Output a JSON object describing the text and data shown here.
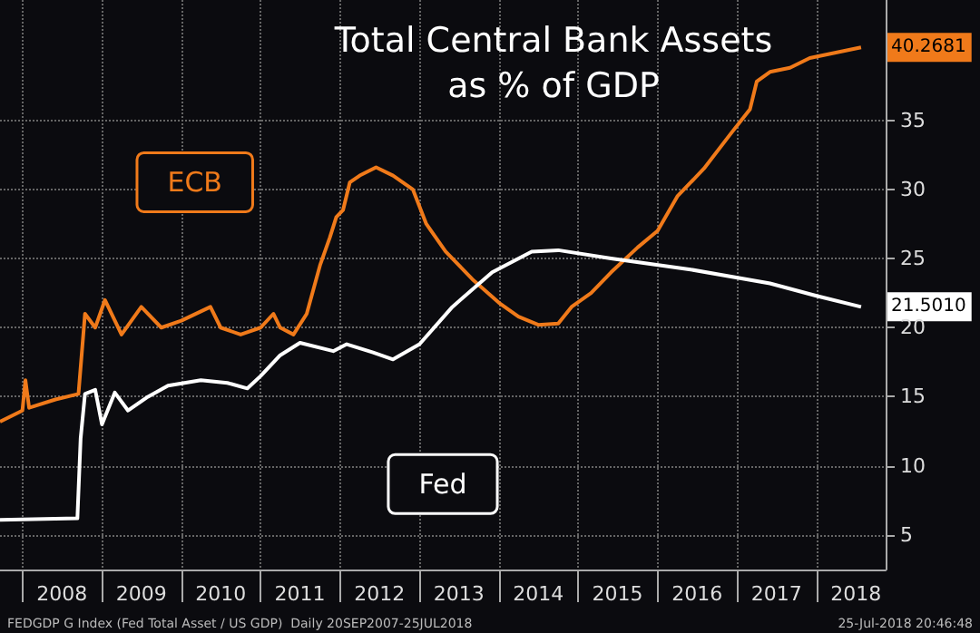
{
  "chart_data": {
    "type": "line",
    "title": "Total Central Bank Assets",
    "subtitle": "as % of GDP",
    "xlim": [
      "2007-09-20",
      "2018-11-15"
    ],
    "xticks": [
      {
        "value": "2008-01-01",
        "label": null
      },
      {
        "value": "2008-07-01",
        "label": "2008"
      },
      {
        "value": "2009-01-01",
        "label": null
      },
      {
        "value": "2009-07-01",
        "label": "2009"
      },
      {
        "value": "2010-01-01",
        "label": null
      },
      {
        "value": "2010-07-01",
        "label": "2010"
      },
      {
        "value": "2011-01-01",
        "label": null
      },
      {
        "value": "2011-07-01",
        "label": "2011"
      },
      {
        "value": "2012-01-01",
        "label": null
      },
      {
        "value": "2012-07-01",
        "label": "2012"
      },
      {
        "value": "2013-01-01",
        "label": null
      },
      {
        "value": "2013-07-01",
        "label": "2013"
      },
      {
        "value": "2014-01-01",
        "label": null
      },
      {
        "value": "2014-07-01",
        "label": "2014"
      },
      {
        "value": "2015-01-01",
        "label": null
      },
      {
        "value": "2015-07-01",
        "label": "2015"
      },
      {
        "value": "2016-01-01",
        "label": null
      },
      {
        "value": "2016-07-01",
        "label": "2016"
      },
      {
        "value": "2017-01-01",
        "label": null
      },
      {
        "value": "2017-07-01",
        "label": "2017"
      },
      {
        "value": "2018-01-01",
        "label": null
      },
      {
        "value": "2018-07-01",
        "label": "2018"
      }
    ],
    "ylim": [
      2.5,
      43.7
    ],
    "yticks": [
      5,
      10,
      15,
      20,
      25,
      30,
      35
    ],
    "grid": true,
    "marker": "none",
    "line_style": "solid",
    "series": [
      {
        "name": "ECB",
        "color": "#f07a1a",
        "x": [
          "2007-09-20",
          "2008-01-01",
          "2008-01-15",
          "2008-02-01",
          "2008-06-01",
          "2008-09-15",
          "2008-10-15",
          "2008-12-01",
          "2009-01-15",
          "2009-04-01",
          "2009-07-01",
          "2009-10-01",
          "2010-01-01",
          "2010-05-15",
          "2010-07-01",
          "2010-10-01",
          "2011-01-01",
          "2011-03-01",
          "2011-04-01",
          "2011-06-01",
          "2011-08-01",
          "2011-10-01",
          "2011-11-15",
          "2011-12-15",
          "2012-01-15",
          "2012-02-15",
          "2012-04-01",
          "2012-06-15",
          "2012-09-01",
          "2012-12-01",
          "2013-02-01",
          "2013-05-01",
          "2013-09-01",
          "2014-01-01",
          "2014-04-01",
          "2014-07-01",
          "2014-10-01",
          "2014-12-01",
          "2015-03-01",
          "2015-06-01",
          "2015-10-01",
          "2016-01-01",
          "2016-04-01",
          "2016-08-01",
          "2016-12-01",
          "2017-03-01",
          "2017-04-01",
          "2017-06-01",
          "2017-09-01",
          "2017-12-01",
          "2018-03-01",
          "2018-07-25"
        ],
        "values": [
          13.2,
          14.0,
          16.2,
          14.2,
          14.8,
          15.2,
          21.0,
          20.0,
          22.0,
          19.5,
          21.5,
          20.0,
          20.5,
          21.5,
          20.0,
          19.5,
          20.0,
          21.0,
          20.0,
          19.5,
          21.0,
          24.5,
          26.5,
          28.0,
          28.5,
          30.5,
          31.0,
          31.6,
          31.0,
          30.0,
          27.5,
          25.5,
          23.5,
          21.8,
          20.8,
          20.2,
          20.3,
          21.5,
          22.5,
          24.0,
          25.8,
          27.0,
          29.5,
          31.5,
          34.0,
          35.8,
          37.8,
          38.5,
          38.8,
          39.5,
          39.8,
          40.27
        ]
      },
      {
        "name": "Fed",
        "color": "#ffffff",
        "x": [
          "2007-09-20",
          "2008-09-10",
          "2008-09-25",
          "2008-10-15",
          "2008-12-01",
          "2009-01-01",
          "2009-03-01",
          "2009-05-01",
          "2009-08-01",
          "2009-11-01",
          "2010-04-01",
          "2010-08-01",
          "2010-11-01",
          "2011-01-01",
          "2011-04-01",
          "2011-07-01",
          "2011-12-01",
          "2012-02-01",
          "2012-06-01",
          "2012-09-01",
          "2013-01-01",
          "2013-06-01",
          "2013-12-01",
          "2014-06-01",
          "2014-10-01",
          "2015-06-01",
          "2016-06-01",
          "2017-06-01",
          "2018-01-01",
          "2018-07-25"
        ],
        "values": [
          6.1,
          6.2,
          12.0,
          15.2,
          15.5,
          13.0,
          15.3,
          14.0,
          15.0,
          15.8,
          16.2,
          16.0,
          15.6,
          16.5,
          18.0,
          18.9,
          18.3,
          18.8,
          18.2,
          17.7,
          18.8,
          21.5,
          24.0,
          25.5,
          25.6,
          25.0,
          24.2,
          23.2,
          22.3,
          21.5
        ]
      }
    ],
    "annotations": [
      {
        "text": "40.2681",
        "x": "2018-07-25",
        "y": 40.2681
      },
      {
        "text": "21.5010",
        "x": "2018-07-25",
        "y": 21.501
      },
      "FEDGDP G Index (Fed Total Asset / US GDP)  Daily 20SEP2007-25JUL2018",
      "25-Jul-2018 20:46:48"
    ]
  }
}
